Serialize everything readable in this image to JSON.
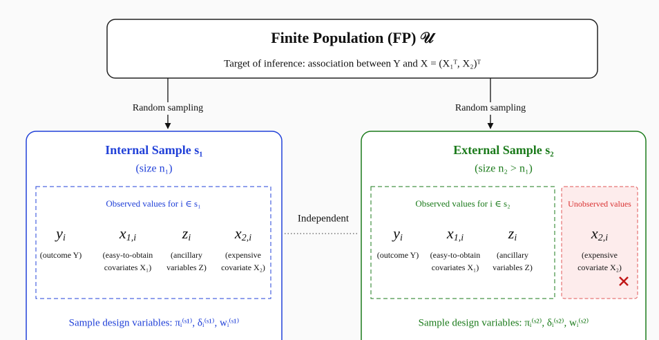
{
  "header": {
    "title": "Finite Population (FP) 𝒰",
    "subtitle": "Target of inference: association between Y and X = (X₁ᵀ, X₂)ᵀ"
  },
  "arrows": {
    "left": "Random sampling",
    "right": "Random sampling"
  },
  "independent": "Independent",
  "internal": {
    "title": "Internal Sample s₁",
    "size": "(size n₁)",
    "observed_label": "Observed values for i ∈ s₁",
    "variables": [
      {
        "base": "y",
        "sub": "i",
        "desc": [
          "(outcome Y)"
        ]
      },
      {
        "base": "x",
        "sub": "1,i",
        "desc": [
          "(easy-to-obtain",
          "covariates X₁)"
        ]
      },
      {
        "base": "z",
        "sub": "i",
        "desc": [
          "(ancillary",
          "variables Z)"
        ]
      },
      {
        "base": "x",
        "sub": "2,i",
        "desc": [
          "(expensive",
          "covariate X₂)"
        ]
      }
    ],
    "design": "Sample design variables: πᵢ⁽ˢ¹⁾,  δᵢ⁽ˢ¹⁾,  wᵢ⁽ˢ¹⁾"
  },
  "external": {
    "title": "External Sample s₂",
    "size": "(size n₂ > n₁)",
    "observed_label": "Observed values for i ∈ s₂",
    "variables": [
      {
        "base": "y",
        "sub": "i",
        "desc": [
          "(outcome Y)"
        ]
      },
      {
        "base": "x",
        "sub": "1,i",
        "desc": [
          "(easy-to-obtain",
          "covariates X₁)"
        ]
      },
      {
        "base": "z",
        "sub": "i",
        "desc": [
          "(ancillary",
          "variables Z)"
        ]
      }
    ],
    "unobserved_label": "Unobserved values",
    "unobserved_variables": [
      {
        "base": "x",
        "sub": "2,i",
        "desc": [
          "(expensive",
          "covariate X₂)"
        ]
      }
    ],
    "design": "Sample design variables: πᵢ⁽ˢ²⁾,  δᵢ⁽ˢ²⁾,  wᵢ⁽ˢ²⁾"
  }
}
